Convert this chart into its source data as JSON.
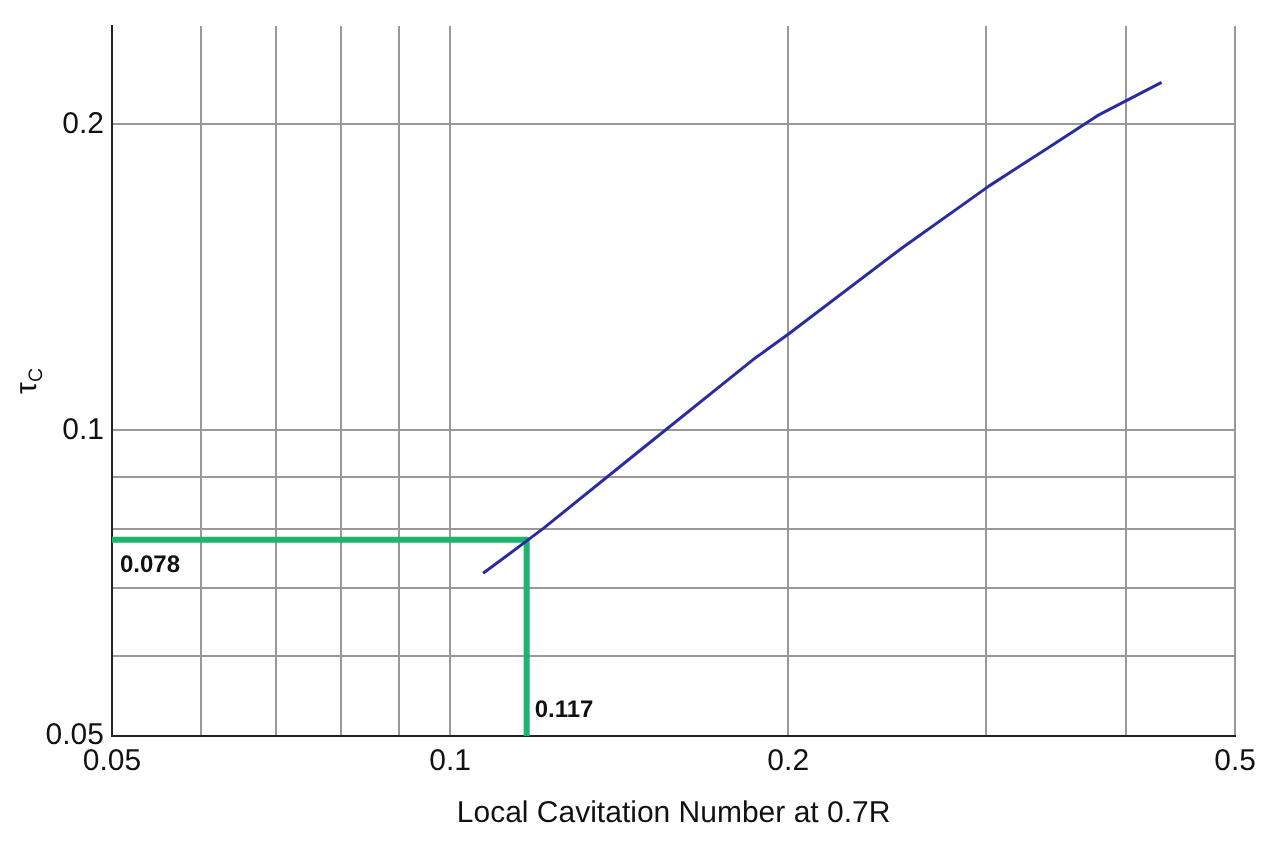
{
  "chart_data": {
    "type": "line",
    "xlabel": "Local Cavitation Number at 0.7R",
    "ylabel": "τ$_{C}$",
    "log": "xy",
    "grid": true,
    "legend": false,
    "marker": "none",
    "xlim": [
      0.05,
      0.5
    ],
    "ylim": [
      0.05,
      0.25
    ],
    "xticks": [
      0.05,
      {
        "value": 0.06,
        "label": null
      },
      {
        "value": 0.07,
        "label": null
      },
      {
        "value": 0.08,
        "label": null
      },
      {
        "value": 0.09,
        "label": null
      },
      0.1,
      0.2,
      {
        "value": 0.3,
        "label": null
      },
      {
        "value": 0.4,
        "label": null
      },
      0.5
    ],
    "yticks": [
      0.05,
      {
        "value": 0.06,
        "label": null
      },
      {
        "value": 0.07,
        "label": null
      },
      {
        "value": 0.08,
        "label": null
      },
      {
        "value": 0.09,
        "label": null
      },
      0.1,
      0.2
    ],
    "series": [
      {
        "color": "#2b2ba0",
        "x": [
          0.107,
          0.121,
          0.146,
          0.186,
          0.2,
          0.252,
          0.302,
          0.339,
          0.377,
          0.43
        ],
        "values": [
          0.0723,
          0.08,
          0.0946,
          0.1173,
          0.1243,
          0.1509,
          0.174,
          0.189,
          0.204,
          0.22
        ]
      },
      {
        "color": "#1eb46e",
        "x": [
          0.05,
          0.117,
          0.117
        ],
        "values": [
          0.078,
          0.078,
          0.05
        ]
      }
    ],
    "annotations": [
      {
        "text": "0.078",
        "x": 0.05,
        "y": 0.078
      },
      {
        "text": "0.117",
        "x": 0.117,
        "y": 0.05
      }
    ]
  }
}
